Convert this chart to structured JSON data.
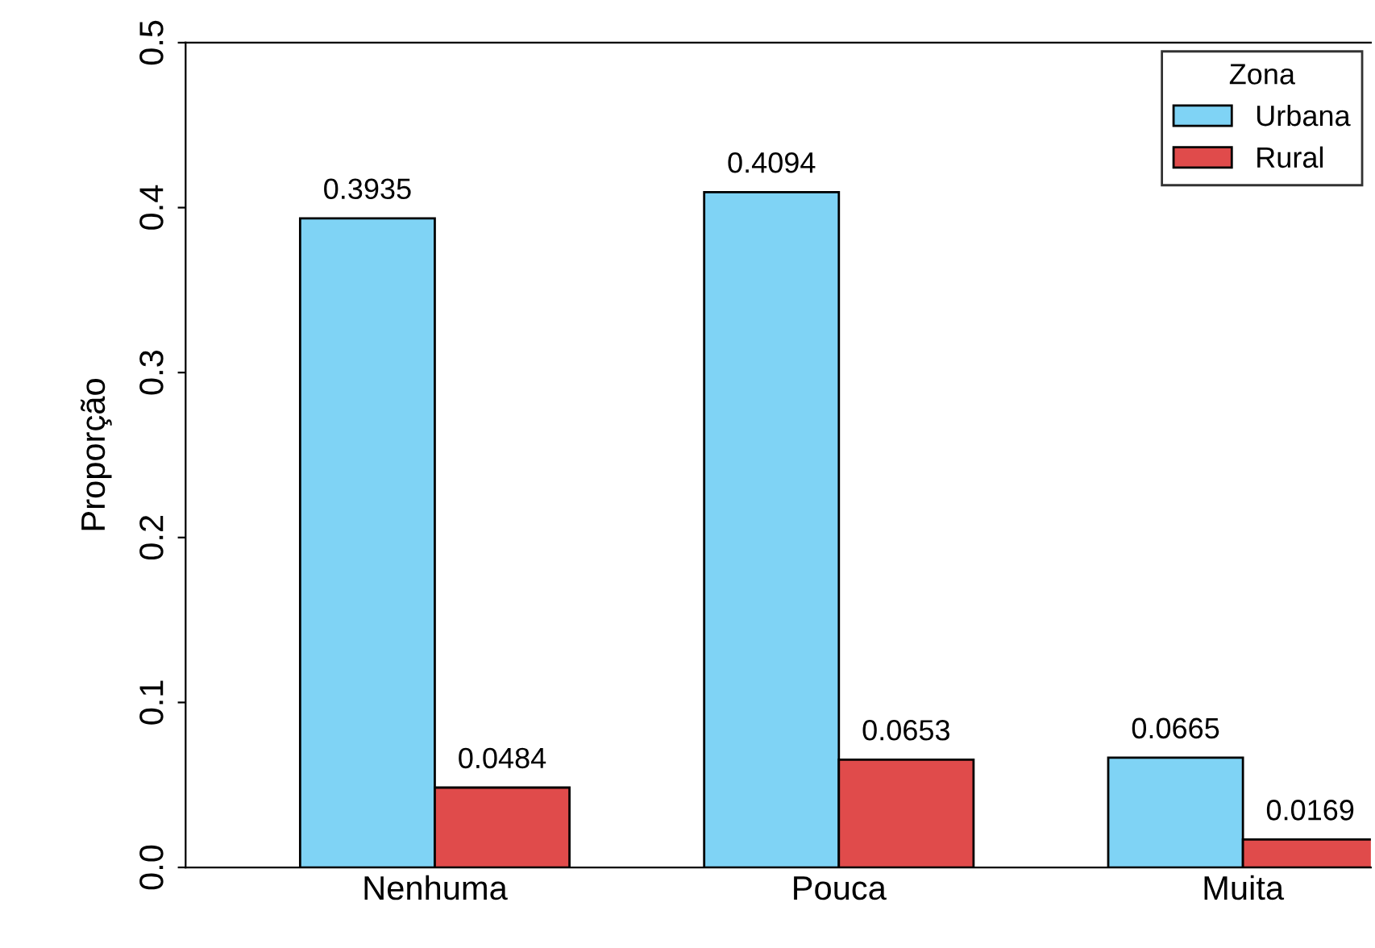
{
  "chart_data": {
    "type": "bar",
    "ylabel": "Proporção",
    "legend_title": "Zona",
    "categories": [
      "Nenhuma",
      "Pouca",
      "Muita"
    ],
    "series": [
      {
        "name": "Urbana",
        "color": "#7fd3f5",
        "values": [
          0.3935,
          0.4094,
          0.0665
        ]
      },
      {
        "name": "Rural",
        "color": "#e04b4b",
        "values": [
          0.0484,
          0.0653,
          0.0169
        ]
      }
    ],
    "ylim": [
      0,
      0.5
    ],
    "yticks": [
      {
        "value": 0,
        "label": "0.0"
      },
      {
        "value": 0.1,
        "label": "0.1"
      },
      {
        "value": 0.2,
        "label": "0.2"
      },
      {
        "value": 0.3,
        "label": "0.3"
      },
      {
        "value": 0.4,
        "label": "0.4"
      },
      {
        "value": 0.5,
        "label": "0.5"
      }
    ],
    "data_labels": true,
    "legend": "top right",
    "grid": false
  }
}
